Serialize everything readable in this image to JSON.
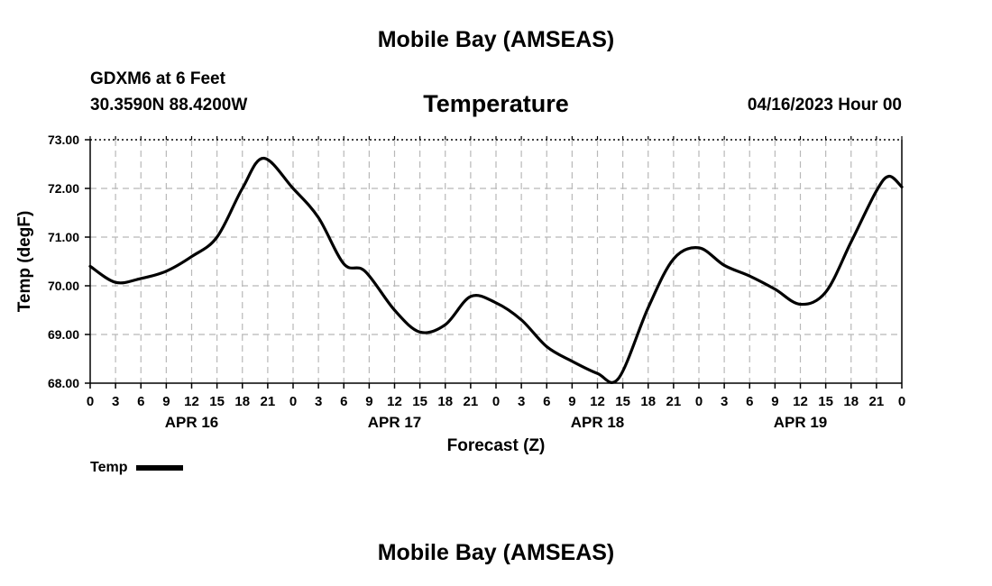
{
  "page": {
    "title_top": "Mobile Bay (AMSEAS)",
    "title_bottom": "Mobile Bay (AMSEAS)",
    "station": "GDXM6 at 6 Feet",
    "coordinates": "30.3590N  88.4200W",
    "datetime": "04/16/2023 Hour 00"
  },
  "chart_data": {
    "type": "line",
    "title": "Temperature",
    "xlabel": "Forecast (Z)",
    "ylabel": "Temp (degF)",
    "xlim": [
      0,
      96
    ],
    "ylim": [
      68.0,
      73.0
    ],
    "yticks": [
      68.0,
      69.0,
      70.0,
      71.0,
      72.0,
      73.0
    ],
    "ytick_labels": [
      "68.00",
      "69.00",
      "70.00",
      "71.00",
      "72.00",
      "73.00"
    ],
    "xtick_labels": [
      "0",
      "3",
      "6",
      "9",
      "12",
      "15",
      "18",
      "21",
      "0",
      "3",
      "6",
      "9",
      "12",
      "15",
      "18",
      "21",
      "0",
      "3",
      "6",
      "9",
      "12",
      "15",
      "18",
      "21",
      "0",
      "3",
      "6",
      "9",
      "12",
      "15",
      "18",
      "21",
      "0"
    ],
    "date_labels": [
      {
        "label": "APR 16",
        "hour": 12
      },
      {
        "label": "APR 17",
        "hour": 36
      },
      {
        "label": "APR 18",
        "hour": 60
      },
      {
        "label": "APR 19",
        "hour": 84
      }
    ],
    "grid": true,
    "legend_position": "bottom-left",
    "series": [
      {
        "name": "Temp",
        "color": "#000000",
        "x": [
          0,
          3,
          6,
          9,
          12,
          15,
          18,
          20.5,
          24,
          27,
          30,
          32.5,
          36,
          39,
          42,
          45,
          48,
          51,
          54,
          57,
          60,
          62.5,
          66,
          69,
          72,
          75,
          78,
          81,
          84,
          87,
          90,
          93,
          94.5,
          96
        ],
        "y": [
          70.4,
          70.07,
          70.15,
          70.3,
          70.6,
          71.0,
          72.0,
          72.62,
          72.0,
          71.4,
          70.45,
          70.3,
          69.5,
          69.05,
          69.2,
          69.78,
          69.65,
          69.3,
          68.75,
          68.45,
          68.2,
          68.1,
          69.55,
          70.55,
          70.78,
          70.42,
          70.2,
          69.93,
          69.62,
          69.87,
          70.9,
          71.95,
          72.25,
          72.03
        ]
      }
    ]
  }
}
